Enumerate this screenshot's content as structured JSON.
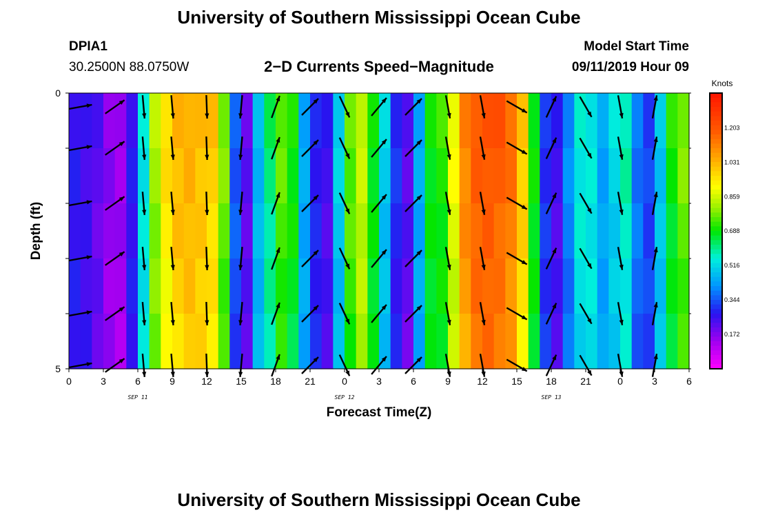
{
  "header": {
    "title": "University of Southern Mississippi Ocean Cube",
    "station": "DPIA1",
    "coords": "30.2500N 88.0750W",
    "product": "2−D Currents Speed−Magnitude",
    "model_label": "Model Start Time",
    "model_time": "09/11/2019 Hour 09"
  },
  "footer": {
    "title": "University of Southern Mississippi Ocean Cube"
  },
  "chart_data": {
    "type": "heatmap",
    "title": "2−D Currents Speed−Magnitude",
    "xlabel": "Forecast Time(Z)",
    "ylabel": "Depth (ft)",
    "x_ticks": [
      "0",
      "3",
      "6",
      "9",
      "12",
      "15",
      "18",
      "21",
      "0",
      "3",
      "6",
      "9",
      "12",
      "15",
      "18",
      "21",
      "0",
      "3",
      "6"
    ],
    "date_labels": [
      {
        "text": "SEP 11",
        "at_tick": 6
      },
      {
        "text": "SEP 12",
        "at_tick": 24
      },
      {
        "text": "SEP 13",
        "at_tick": 42
      }
    ],
    "y_ticks": [
      "0",
      "5"
    ],
    "ylim": [
      0,
      5
    ],
    "xlim_hours": [
      0,
      54
    ],
    "colorbar": {
      "unit": "Knots",
      "ticks": [
        "1.203",
        "1.031",
        "0.859",
        "0.688",
        "0.516",
        "0.344",
        "0.172"
      ],
      "range": [
        0,
        1.376
      ]
    },
    "depth_layers": 5,
    "time_columns_hours": [
      0,
      1,
      2,
      3,
      4,
      5,
      6,
      7,
      8,
      9,
      10,
      11,
      12,
      13,
      14,
      15,
      16,
      17,
      18,
      19,
      20,
      21,
      22,
      23,
      24,
      25,
      26,
      27,
      28,
      29,
      30,
      31,
      32,
      33,
      34,
      35,
      36,
      37,
      38,
      39,
      40,
      41,
      42,
      43,
      44,
      45,
      46,
      47,
      48,
      49,
      50,
      51,
      52,
      53
    ],
    "speed_knots_surface": [
      0.28,
      0.26,
      0.22,
      0.16,
      0.14,
      0.28,
      0.55,
      0.82,
      0.96,
      1.03,
      1.05,
      1.03,
      1.0,
      0.78,
      0.35,
      0.22,
      0.48,
      0.62,
      0.76,
      0.7,
      0.45,
      0.3,
      0.25,
      0.5,
      0.76,
      0.86,
      0.7,
      0.5,
      0.3,
      0.22,
      0.45,
      0.7,
      0.72,
      0.9,
      1.12,
      1.2,
      1.22,
      1.2,
      1.15,
      1.0,
      0.7,
      0.32,
      0.25,
      0.4,
      0.55,
      0.55,
      0.45,
      0.52,
      0.58,
      0.38,
      0.33,
      0.5,
      0.7,
      0.78
    ],
    "arrow_times_hours": [
      1,
      4,
      6.5,
      9,
      12,
      15,
      18,
      21,
      24,
      27,
      30,
      33,
      36,
      39,
      42,
      45,
      48,
      51
    ],
    "arrow_directions_deg_from_north_toward": [
      80,
      55,
      175,
      175,
      178,
      185,
      20,
      45,
      155,
      40,
      45,
      170,
      170,
      120,
      25,
      150,
      170,
      10
    ]
  }
}
